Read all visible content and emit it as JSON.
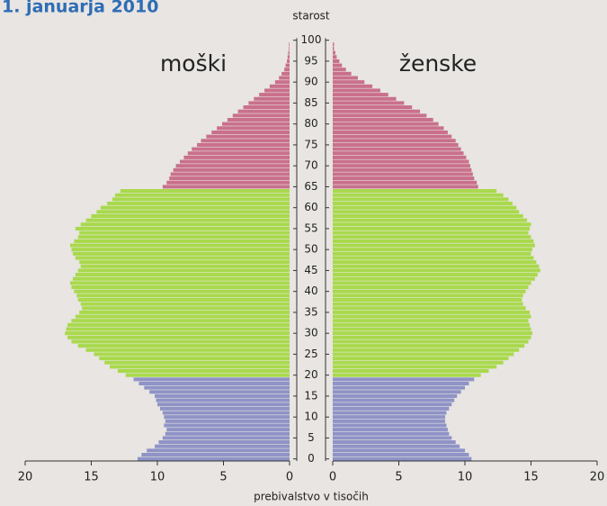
{
  "chart_data": {
    "type": "pyramid",
    "title": "1. januarja 2010",
    "y_label": "starost",
    "x_label": "prebivalstvo v tisočih",
    "categories": [
      0,
      null,
      null,
      null,
      null,
      5,
      null,
      null,
      null,
      null,
      10,
      null,
      null,
      null,
      null,
      15,
      null,
      null,
      null,
      null,
      20,
      null,
      null,
      null,
      null,
      25,
      null,
      null,
      null,
      null,
      30,
      null,
      null,
      null,
      null,
      35,
      null,
      null,
      null,
      null,
      40,
      null,
      null,
      null,
      null,
      45,
      null,
      null,
      null,
      null,
      50,
      null,
      null,
      null,
      null,
      55,
      null,
      null,
      null,
      null,
      60,
      null,
      null,
      null,
      null,
      65,
      null,
      null,
      null,
      null,
      70,
      null,
      null,
      null,
      null,
      75,
      null,
      null,
      null,
      null,
      80,
      null,
      null,
      null,
      null,
      85,
      null,
      null,
      null,
      null,
      90,
      null,
      null,
      null,
      null,
      95,
      null,
      null,
      null,
      null,
      100
    ],
    "xlim": [
      0,
      20
    ],
    "xticks": [
      0,
      5,
      10,
      15,
      20
    ],
    "age_groups": [
      {
        "start": 0,
        "color": "#8f93c6"
      },
      {
        "start": 20,
        "color": "#a9d94c"
      },
      {
        "start": 65,
        "color": "#c9708c"
      }
    ],
    "series": [
      {
        "name": "moški",
        "side": "left",
        "values": [
          11.5,
          11.2,
          10.8,
          10.2,
          9.9,
          9.6,
          9.4,
          9.3,
          9.5,
          9.4,
          9.5,
          9.6,
          9.8,
          10.0,
          10.1,
          10.2,
          10.6,
          11.0,
          11.4,
          11.8,
          12.4,
          13.0,
          13.6,
          14.0,
          14.4,
          14.8,
          15.4,
          16.0,
          16.5,
          16.8,
          17.0,
          16.9,
          16.8,
          16.5,
          16.2,
          15.9,
          15.7,
          15.8,
          16.0,
          16.1,
          16.3,
          16.5,
          16.6,
          16.4,
          16.2,
          16.0,
          15.8,
          15.9,
          16.2,
          16.4,
          16.5,
          16.6,
          16.3,
          16.0,
          15.9,
          16.2,
          15.8,
          15.4,
          15.0,
          14.6,
          14.3,
          13.8,
          13.4,
          13.2,
          12.8,
          9.6,
          9.3,
          9.1,
          9.0,
          8.8,
          8.6,
          8.3,
          8.0,
          7.7,
          7.4,
          7.0,
          6.7,
          6.3,
          5.9,
          5.5,
          5.1,
          4.7,
          4.3,
          3.9,
          3.5,
          3.1,
          2.7,
          2.3,
          1.9,
          1.5,
          1.1,
          0.8,
          0.6,
          0.4,
          0.3,
          0.2,
          0.15,
          0.1,
          0.05,
          0.05,
          0.0
        ]
      },
      {
        "name": "ženske",
        "side": "right",
        "values": [
          10.5,
          10.3,
          10.0,
          9.6,
          9.3,
          9.0,
          8.8,
          8.7,
          8.6,
          8.5,
          8.5,
          8.6,
          8.8,
          9.0,
          9.2,
          9.4,
          9.7,
          10.0,
          10.3,
          10.7,
          11.2,
          11.8,
          12.4,
          12.9,
          13.3,
          13.7,
          14.1,
          14.5,
          14.8,
          15.0,
          15.1,
          15.0,
          14.9,
          14.8,
          15.0,
          14.9,
          14.6,
          14.4,
          14.3,
          14.4,
          14.6,
          14.8,
          15.0,
          15.3,
          15.5,
          15.7,
          15.6,
          15.4,
          15.2,
          15.0,
          15.1,
          15.3,
          15.2,
          15.0,
          14.8,
          14.9,
          15.0,
          14.7,
          14.4,
          14.1,
          13.9,
          13.6,
          13.3,
          12.9,
          12.4,
          11.0,
          10.9,
          10.7,
          10.6,
          10.5,
          10.4,
          10.3,
          10.1,
          9.9,
          9.7,
          9.5,
          9.3,
          9.0,
          8.7,
          8.4,
          8.0,
          7.6,
          7.1,
          6.6,
          6.0,
          5.4,
          4.8,
          4.2,
          3.6,
          3.0,
          2.4,
          1.9,
          1.4,
          1.0,
          0.7,
          0.5,
          0.3,
          0.2,
          0.1,
          0.1,
          0.0
        ]
      }
    ]
  }
}
